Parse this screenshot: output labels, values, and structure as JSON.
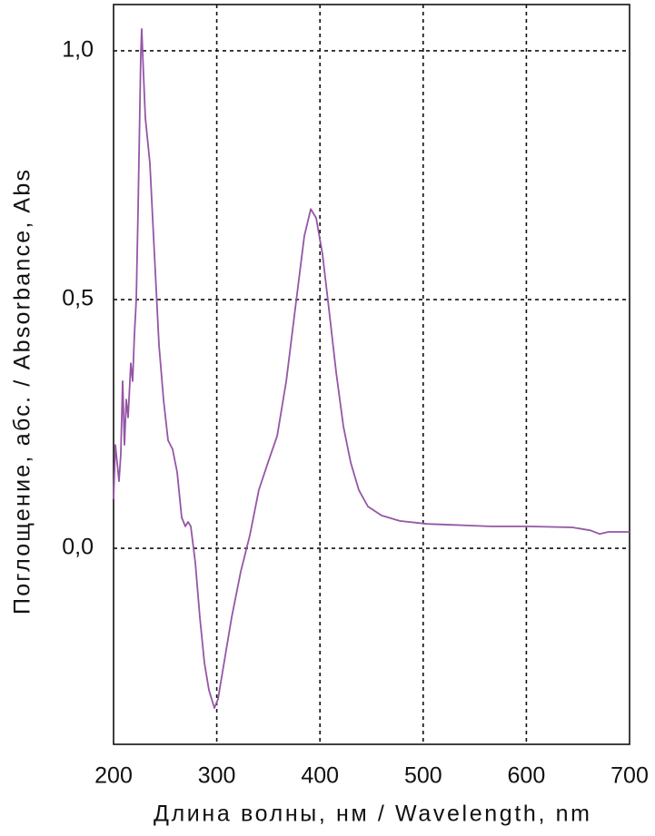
{
  "chart_data": {
    "type": "line",
    "x_label": "Длина волны, нм / Wavelength, nm",
    "y_label": "Поглощение, абс. / Absorbance, Abs",
    "x": [
      200,
      201.8,
      205.3,
      207.0,
      208.8,
      210.6,
      212.3,
      214.1,
      216.7,
      218.5,
      220.2,
      222.0,
      223.8,
      226.4,
      227.3,
      229.0,
      230.8,
      235.2,
      239.6,
      244.0,
      248.4,
      252.8,
      257.2,
      261.6,
      266.0,
      269.5,
      272.2,
      274.8,
      279.2,
      283.6,
      288.0,
      292.4,
      297.7,
      301.2,
      305.6,
      314.4,
      323.2,
      332.0,
      340.8,
      349.6,
      358.5,
      367.3,
      376.1,
      384.9,
      391.1,
      396.3,
      402.5,
      408.6,
      415.7,
      422.7,
      429.8,
      437.7,
      446.5,
      459.7,
      477.3,
      503.7,
      530.1,
      565.3,
      600.5,
      644.5,
      662.1,
      670.9,
      679.6,
      700
    ],
    "values": [
      0.099,
      0.208,
      0.135,
      0.19,
      0.336,
      0.208,
      0.299,
      0.263,
      0.372,
      0.336,
      0.427,
      0.5,
      0.682,
      0.993,
      1.044,
      0.956,
      0.865,
      0.774,
      0.591,
      0.409,
      0.299,
      0.217,
      0.199,
      0.153,
      0.062,
      0.044,
      0.053,
      0.044,
      -0.029,
      -0.139,
      -0.23,
      -0.285,
      -0.321,
      -0.303,
      -0.248,
      -0.139,
      -0.047,
      0.026,
      0.117,
      0.172,
      0.226,
      0.336,
      0.482,
      0.628,
      0.682,
      0.664,
      0.591,
      0.482,
      0.354,
      0.245,
      0.172,
      0.117,
      0.084,
      0.066,
      0.055,
      0.049,
      0.047,
      0.044,
      0.044,
      0.042,
      0.036,
      0.029,
      0.033,
      0.033
    ],
    "color": "#9556a6",
    "xlim": [
      200,
      700
    ],
    "xticks": [
      200,
      300,
      400,
      500,
      600,
      700
    ],
    "ylim": [
      -0.394,
      1.093
    ],
    "yticks": [
      {
        "value": 0,
        "label": "0,0"
      },
      {
        "value": 0.5,
        "label": "0,5"
      },
      {
        "value": 1,
        "label": "1,0"
      }
    ],
    "grid": true
  }
}
